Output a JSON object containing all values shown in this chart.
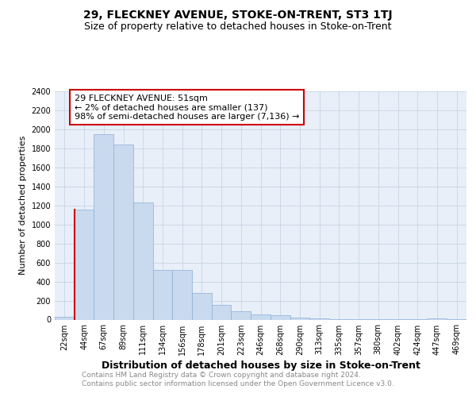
{
  "title1": "29, FLECKNEY AVENUE, STOKE-ON-TRENT, ST3 1TJ",
  "title2": "Size of property relative to detached houses in Stoke-on-Trent",
  "xlabel": "Distribution of detached houses by size in Stoke-on-Trent",
  "ylabel": "Number of detached properties",
  "footer1": "Contains HM Land Registry data © Crown copyright and database right 2024.",
  "footer2": "Contains public sector information licensed under the Open Government Licence v3.0.",
  "categories": [
    "22sqm",
    "44sqm",
    "67sqm",
    "89sqm",
    "111sqm",
    "134sqm",
    "156sqm",
    "178sqm",
    "201sqm",
    "223sqm",
    "246sqm",
    "268sqm",
    "290sqm",
    "313sqm",
    "335sqm",
    "357sqm",
    "380sqm",
    "402sqm",
    "424sqm",
    "447sqm",
    "469sqm"
  ],
  "values": [
    30,
    1160,
    1950,
    1840,
    1230,
    520,
    520,
    280,
    155,
    90,
    55,
    45,
    20,
    12,
    8,
    6,
    5,
    5,
    3,
    12,
    5
  ],
  "bar_fill": "#c9d9ee",
  "bar_edge_color": "#8ab0d8",
  "highlight_bar_index": 1,
  "highlight_edge_color": "#cc0000",
  "annotation_text": "29 FLECKNEY AVENUE: 51sqm\n← 2% of detached houses are smaller (137)\n98% of semi-detached houses are larger (7,136) →",
  "annotation_box_color": "#ffffff",
  "annotation_box_edge": "#cc0000",
  "ylim": [
    0,
    2400
  ],
  "yticks": [
    0,
    200,
    400,
    600,
    800,
    1000,
    1200,
    1400,
    1600,
    1800,
    2000,
    2200,
    2400
  ],
  "axes_bg_color": "#e8eff8",
  "bg_color": "#ffffff",
  "grid_color": "#c8d4e4",
  "title1_fontsize": 10,
  "title2_fontsize": 9,
  "xlabel_fontsize": 9,
  "ylabel_fontsize": 8,
  "tick_fontsize": 7,
  "footer_fontsize": 6.5,
  "annotation_fontsize": 8
}
